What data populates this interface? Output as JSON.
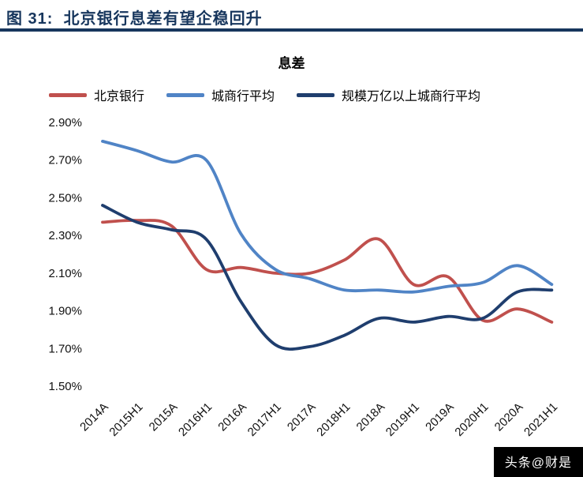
{
  "figure": {
    "caption": "图 31:  北京银行息差有望企稳回升",
    "accent_color": "#17365D"
  },
  "chart_data": {
    "type": "line",
    "title": "息差",
    "categories": [
      "2014A",
      "2015H1",
      "2015A",
      "2016H1",
      "2016A",
      "2017H1",
      "2017A",
      "2018H1",
      "2018A",
      "2019H1",
      "2019A",
      "2020H1",
      "2020A",
      "2021H1"
    ],
    "series": [
      {
        "name": "北京银行",
        "color": "#C0504D",
        "values": [
          2.37,
          2.38,
          2.35,
          2.12,
          2.13,
          2.1,
          2.1,
          2.17,
          2.28,
          2.04,
          2.08,
          1.85,
          1.91,
          1.84
        ]
      },
      {
        "name": "城商行平均",
        "color": "#5084C6",
        "values": [
          2.8,
          2.75,
          2.69,
          2.7,
          2.31,
          2.12,
          2.07,
          2.01,
          2.01,
          2.0,
          2.03,
          2.05,
          2.14,
          2.04
        ]
      },
      {
        "name": "规模万亿以上城商行平均",
        "color": "#1F3E6E",
        "values": [
          2.46,
          2.37,
          2.33,
          2.28,
          1.95,
          1.72,
          1.71,
          1.77,
          1.86,
          1.84,
          1.87,
          1.86,
          2.0,
          2.01
        ]
      }
    ],
    "ylim": [
      1.5,
      2.9
    ],
    "ytick_step": 0.2,
    "ytick_format": "0.00%",
    "grid": false,
    "legend_position": "top",
    "xlabel": "",
    "ylabel": ""
  },
  "watermark": {
    "text": "头条@财是",
    "bg": "#000000",
    "fg": "#FFFFFF"
  }
}
